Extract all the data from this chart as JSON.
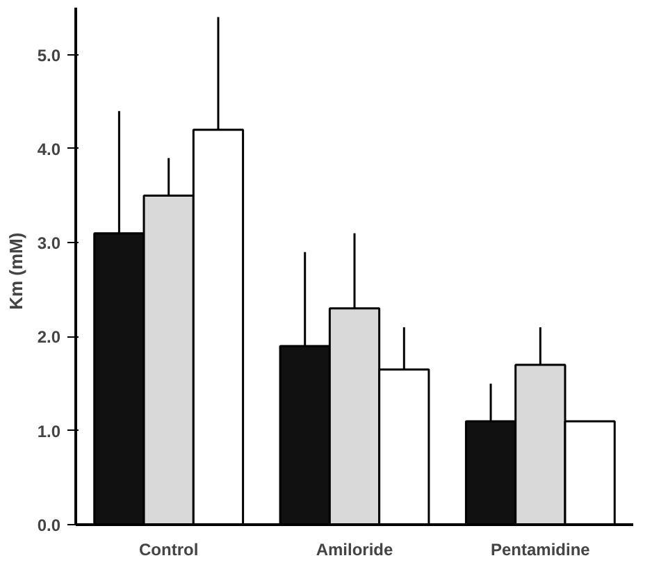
{
  "chart_data": {
    "type": "bar",
    "ylabel": "Km   (mM)",
    "categories": [
      "Control",
      "Amiloride",
      "Pentamidine"
    ],
    "series": [
      {
        "color": "#111111",
        "values": [
          3.1,
          1.9,
          1.1
        ],
        "errors": [
          [
            3.1,
            4.4
          ],
          [
            1.9,
            2.9
          ],
          [
            1.1,
            1.5
          ]
        ]
      },
      {
        "color": "#d9d9d9",
        "values": [
          3.5,
          2.3,
          1.7
        ],
        "errors": [
          [
            3.5,
            3.9
          ],
          [
            2.3,
            3.1
          ],
          [
            1.7,
            2.1
          ]
        ]
      },
      {
        "color": "#ffffff",
        "values": [
          4.2,
          1.65,
          1.1
        ],
        "errors": [
          [
            4.2,
            5.4
          ],
          [
            1.65,
            2.1
          ],
          null
        ]
      }
    ],
    "ylim": [
      0,
      5.5
    ],
    "yticks": [
      {
        "value": 0,
        "label": "0.0"
      },
      {
        "value": 1,
        "label": "1.0"
      },
      {
        "value": 2,
        "label": "2.0"
      },
      {
        "value": 3,
        "label": "3.0"
      },
      {
        "value": 4,
        "label": "4.0"
      },
      {
        "value": 5,
        "label": "5.0"
      }
    ],
    "grid": false
  }
}
